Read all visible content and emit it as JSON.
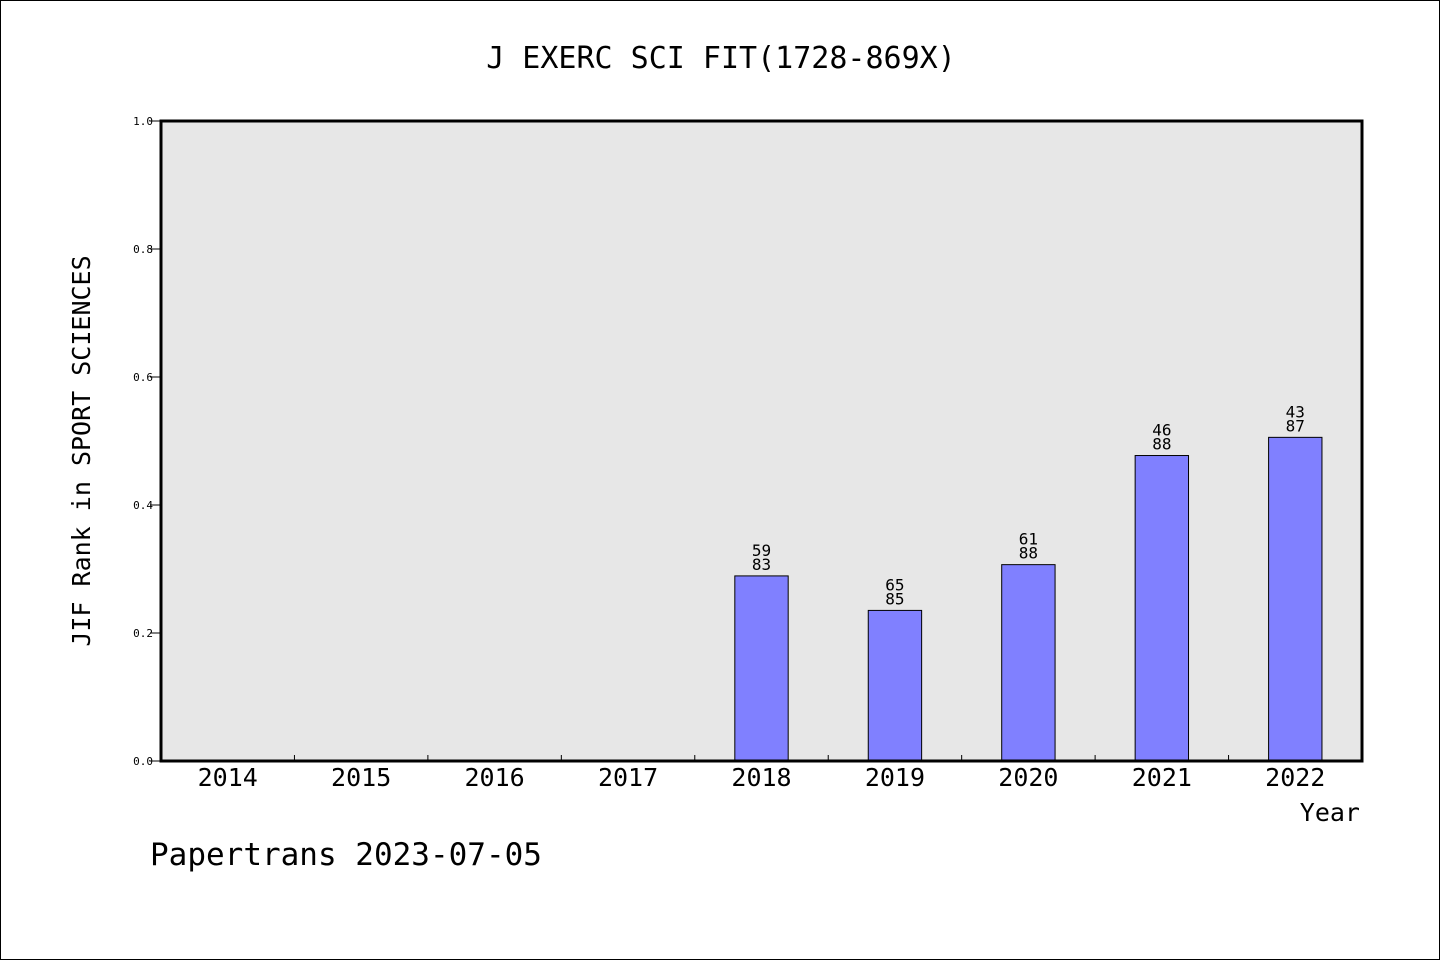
{
  "chart_data": {
    "type": "bar",
    "title": "J EXERC SCI FIT(1728-869X)",
    "xlabel": "Year",
    "ylabel": "JIF Rank in SPORT SCIENCES",
    "categories": [
      "2014",
      "2015",
      "2016",
      "2017",
      "2018",
      "2019",
      "2020",
      "2021",
      "2022"
    ],
    "values": [
      null,
      null,
      null,
      null,
      0.2892,
      0.2353,
      0.3068,
      0.4773,
      0.5057
    ],
    "bar_labels": [
      null,
      null,
      null,
      null,
      {
        "rank": "59",
        "total": "83"
      },
      {
        "rank": "65",
        "total": "85"
      },
      {
        "rank": "61",
        "total": "88"
      },
      {
        "rank": "46",
        "total": "88"
      },
      {
        "rank": "43",
        "total": "87"
      }
    ],
    "ylim": [
      0.0,
      1.0
    ],
    "yticks": [
      "0.0",
      "0.2",
      "0.4",
      "0.6",
      "0.8",
      "1.0"
    ],
    "grid": false,
    "plot_background": "#e7e7e7",
    "bar_color": "#8080ff"
  },
  "footer": "Papertrans 2023-07-05"
}
